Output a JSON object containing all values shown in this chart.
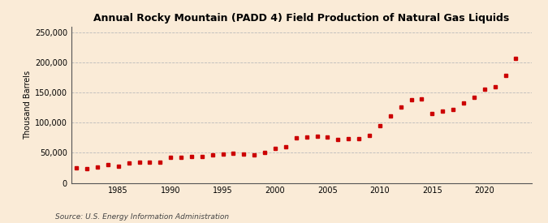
{
  "title": "Annual Rocky Mountain (PADD 4) Field Production of Natural Gas Liquids",
  "ylabel": "Thousand Barrels",
  "source": "Source: U.S. Energy Information Administration",
  "background_color": "#faebd7",
  "marker_color": "#cc0000",
  "marker": "s",
  "marker_size": 3.5,
  "grid_color": "#bbbbbb",
  "ylim": [
    0,
    260000
  ],
  "yticks": [
    0,
    50000,
    100000,
    150000,
    200000,
    250000
  ],
  "xlim": [
    1980.5,
    2024.5
  ],
  "xticks": [
    1985,
    1990,
    1995,
    2000,
    2005,
    2010,
    2015,
    2020
  ],
  "years": [
    1981,
    1982,
    1983,
    1984,
    1985,
    1986,
    1987,
    1988,
    1989,
    1990,
    1991,
    1992,
    1993,
    1994,
    1995,
    1996,
    1997,
    1998,
    1999,
    2000,
    2001,
    2002,
    2003,
    2004,
    2005,
    2006,
    2007,
    2008,
    2009,
    2010,
    2011,
    2012,
    2013,
    2014,
    2015,
    2016,
    2017,
    2018,
    2019,
    2020,
    2021,
    2022,
    2023
  ],
  "values": [
    25000,
    23000,
    26000,
    30000,
    28000,
    33000,
    35000,
    35000,
    34000,
    43000,
    42000,
    44000,
    44000,
    46000,
    48000,
    49000,
    48000,
    47000,
    50000,
    57000,
    60000,
    75000,
    76000,
    77000,
    76000,
    72000,
    73000,
    73000,
    79000,
    95000,
    112000,
    126000,
    138000,
    140000,
    115000,
    120000,
    122000,
    133000,
    143000,
    156000,
    160000,
    179000,
    208000
  ]
}
